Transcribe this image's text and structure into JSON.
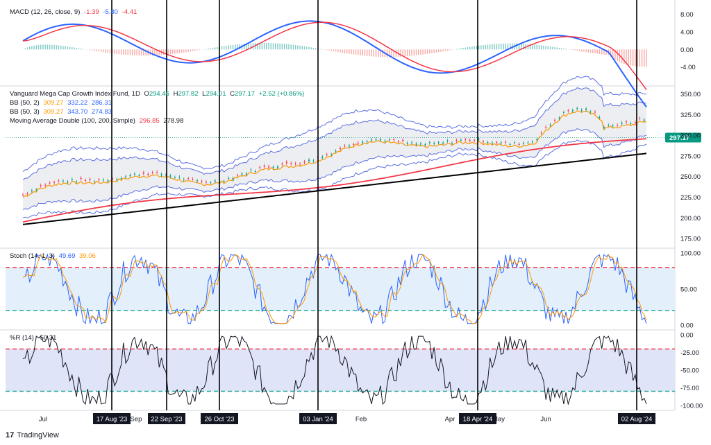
{
  "chart_data": [
    {
      "type": "line",
      "title": "MACD (12, 26, close, 9)",
      "legend_values": [
        "-1.39",
        "-5.80",
        "-4.41"
      ],
      "ylim": [
        -8,
        10
      ],
      "yticks": [
        "8.00",
        "4.00",
        "0.00",
        "-4.00"
      ],
      "series": [
        {
          "name": "MACD",
          "color": "#2962ff"
        },
        {
          "name": "Signal",
          "color": "#f23645"
        },
        {
          "name": "Histogram",
          "color": "#26a69a"
        }
      ]
    },
    {
      "type": "line",
      "title": "Vanguard Mega Cap Growth Index Fund, 1D",
      "ohlc": {
        "o_label": "O",
        "o": "294.46",
        "h_label": "H",
        "h": "297.82",
        "l_label": "L",
        "l": "294.01",
        "c_label": "C",
        "c": "297.17",
        "chg": "+2.52 (+0.86%)"
      },
      "bb1": {
        "label": "BB (50, 2)",
        "basis": "309.27",
        "upper": "332.22",
        "lower": "286.31"
      },
      "bb2": {
        "label": "BB (50, 3)",
        "basis": "309.27",
        "upper": "343.70",
        "lower": "274.83"
      },
      "ma": {
        "label": "Moving Average Double (100, 200, Simple)",
        "ma1": "296.85",
        "ma2": "278.98"
      },
      "last_price": "297.17",
      "ylim": [
        165,
        358
      ],
      "yticks": [
        "350.00",
        "325.00",
        "300.00",
        "275.00",
        "250.00",
        "225.00",
        "200.00",
        "175.00"
      ]
    },
    {
      "type": "line",
      "title": "Stoch (14, 1, 3)",
      "legend_values": [
        "49.69",
        "39.06"
      ],
      "ylim": [
        -5,
        105
      ],
      "levels": [
        80,
        20
      ],
      "yticks": [
        "100.00",
        "50.00",
        "0.00"
      ]
    },
    {
      "type": "line",
      "title": "%R (14)",
      "legend_values": [
        "-50.31"
      ],
      "ylim": [
        -105,
        5
      ],
      "levels": [
        -20,
        -80
      ],
      "yticks": [
        "0.00",
        "-25.00",
        "-50.00",
        "-75.00",
        "-100.00"
      ]
    }
  ],
  "x_axis": {
    "labels": [
      "Jul",
      "Sep",
      "Feb",
      "Apr",
      "May",
      "Jun"
    ],
    "markers": [
      "17 Aug '23",
      "22 Sep '23",
      "26 Oct '23",
      "03 Jan '24",
      "18 Apr '24",
      "02 Aug '24"
    ]
  },
  "branding": {
    "name": "TradingView",
    "logo": "17"
  },
  "colors": {
    "blue": "#2962ff",
    "red": "#f23645",
    "orange": "#ff9800",
    "black": "#000000",
    "teal": "#089981",
    "bb_band": "#5b6ee1",
    "fill_stoch": "#e3f0fb",
    "fill_wr": "#dfe4f9"
  }
}
